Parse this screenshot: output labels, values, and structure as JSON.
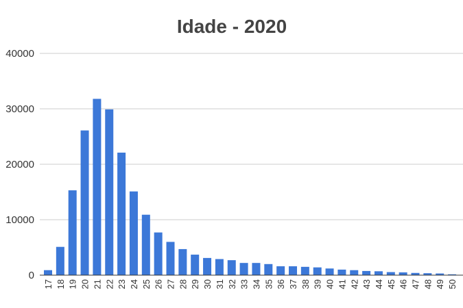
{
  "chart_data": {
    "type": "bar",
    "title": "Idade - 2020",
    "xlabel": "",
    "ylabel": "",
    "ylim": [
      0,
      40000
    ],
    "yticks": [
      "0",
      "10000",
      "20000",
      "30000",
      "40000"
    ],
    "grid": true,
    "legend": "none",
    "colors": {
      "bar": "#3c78d8",
      "grid": "#cccccc",
      "title": "#444444"
    },
    "categories": [
      "17",
      "18",
      "19",
      "20",
      "21",
      "22",
      "23",
      "24",
      "25",
      "26",
      "27",
      "28",
      "29",
      "30",
      "31",
      "32",
      "33",
      "34",
      "35",
      "36",
      "37",
      "38",
      "39",
      "40",
      "41",
      "42",
      "43",
      "44",
      "45",
      "46",
      "47",
      "48",
      "49",
      "50"
    ],
    "values": [
      900,
      5100,
      15300,
      26100,
      31800,
      29900,
      22100,
      15100,
      10900,
      7700,
      6000,
      4700,
      3700,
      3100,
      2900,
      2700,
      2200,
      2200,
      2000,
      1600,
      1600,
      1500,
      1400,
      1200,
      1000,
      900,
      750,
      700,
      550,
      500,
      400,
      350,
      300,
      150
    ]
  }
}
